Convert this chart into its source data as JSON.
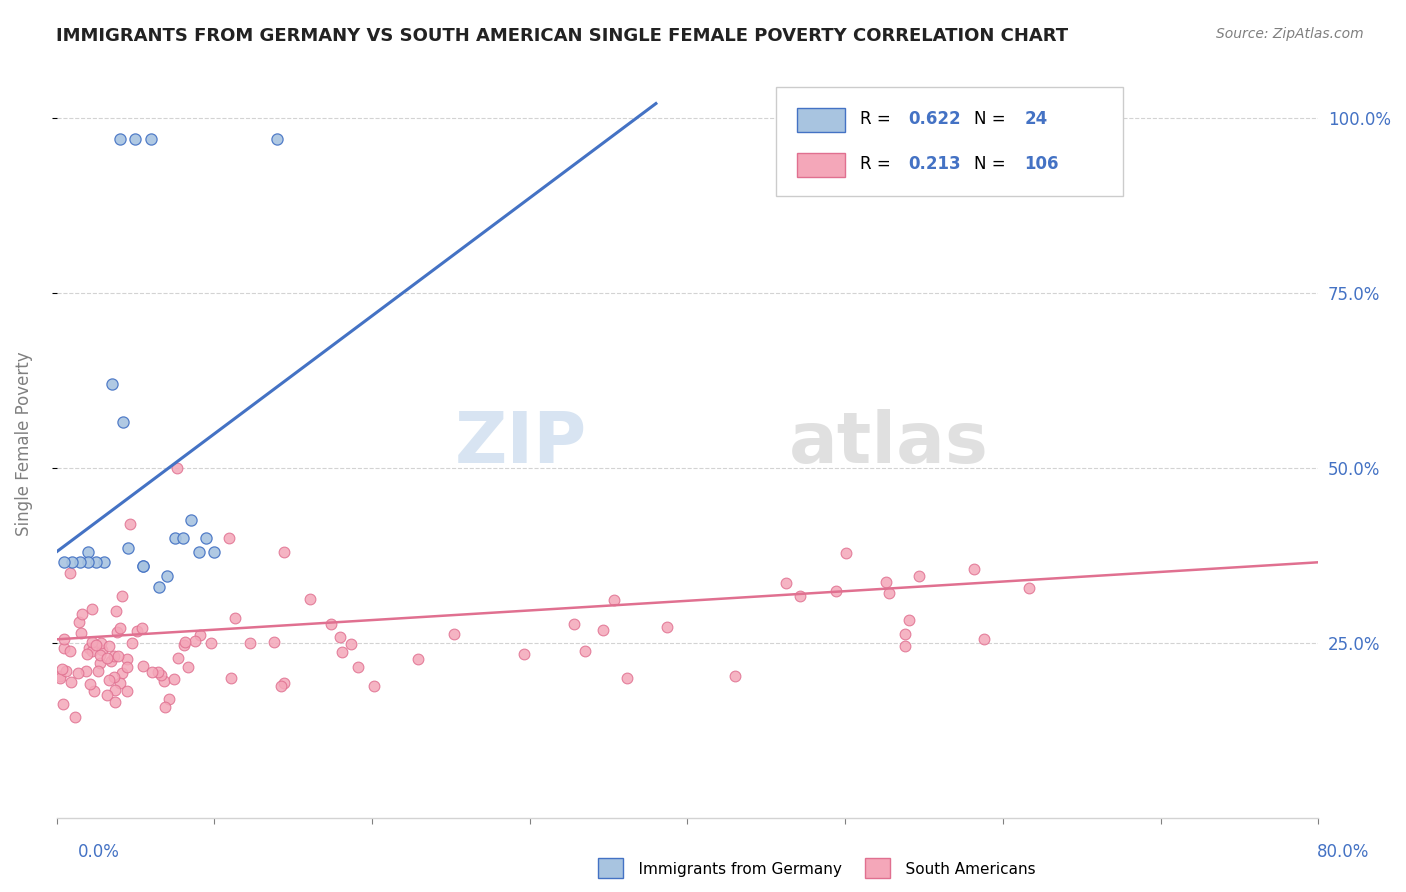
{
  "title": "IMMIGRANTS FROM GERMANY VS SOUTH AMERICAN SINGLE FEMALE POVERTY CORRELATION CHART",
  "source": "Source: ZipAtlas.com",
  "ylabel": "Single Female Poverty",
  "watermark_zip": "ZIP",
  "watermark_atlas": "atlas",
  "xlim": [
    0.0,
    0.8
  ],
  "ylim": [
    0.0,
    1.07
  ],
  "yticks": [
    0.25,
    0.5,
    0.75,
    1.0
  ],
  "ytick_labels": [
    "25.0%",
    "50.0%",
    "75.0%",
    "100.0%"
  ],
  "color_germany_fill": "#a8c4e0",
  "color_germany_edge": "#4472c4",
  "color_sa_fill": "#f4a7b9",
  "color_sa_edge": "#e07090",
  "germany_x": [
    0.02,
    0.035,
    0.042,
    0.14,
    0.085,
    0.09,
    0.1,
    0.095,
    0.055,
    0.07,
    0.065,
    0.075,
    0.04,
    0.05,
    0.06,
    0.08,
    0.045,
    0.055,
    0.03,
    0.025,
    0.02,
    0.015,
    0.01,
    0.005
  ],
  "germany_y": [
    0.38,
    0.62,
    0.565,
    0.97,
    0.425,
    0.38,
    0.38,
    0.4,
    0.36,
    0.345,
    0.33,
    0.4,
    0.97,
    0.97,
    0.97,
    0.4,
    0.385,
    0.36,
    0.365,
    0.365,
    0.365,
    0.365,
    0.365,
    0.365
  ],
  "germany_line_x": [
    0.0,
    0.38
  ],
  "germany_line_y": [
    0.38,
    1.02
  ],
  "sa_line_x": [
    0.0,
    0.8
  ],
  "sa_line_y": [
    0.255,
    0.365
  ],
  "legend_R1": "0.622",
  "legend_N1": "24",
  "legend_R2": "0.213",
  "legend_N2": "106"
}
